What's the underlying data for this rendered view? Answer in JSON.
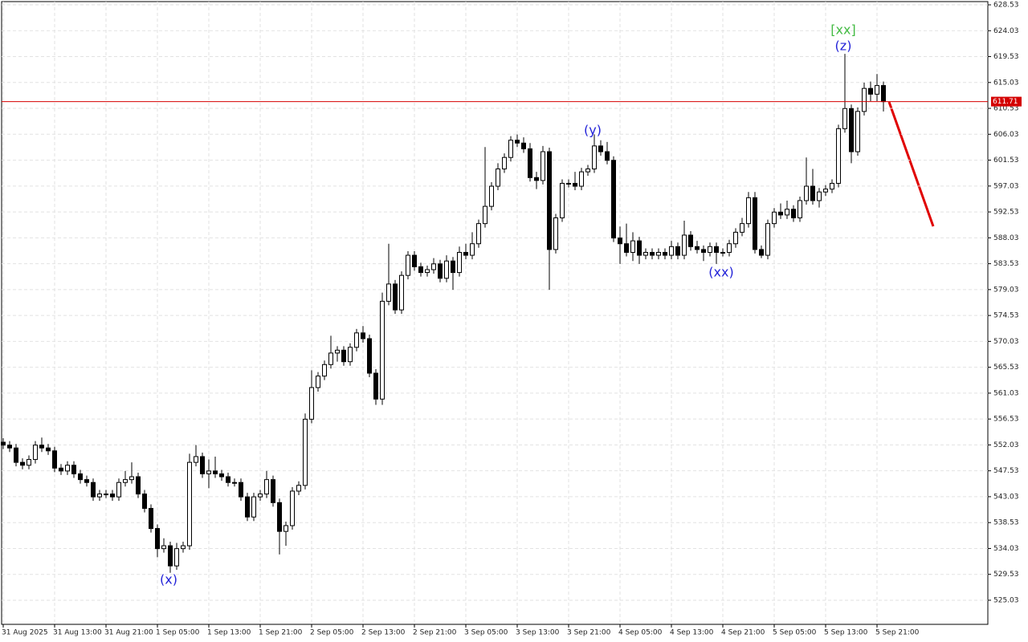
{
  "chart_data": {
    "type": "candlestick",
    "categories": [
      "31 Aug 2025",
      null,
      null,
      null,
      null,
      null,
      null,
      null,
      "31 Aug 13:00",
      null,
      null,
      null,
      null,
      null,
      null,
      null,
      "31 Aug 21:00",
      null,
      null,
      null,
      null,
      null,
      null,
      null,
      "1 Sep 05:00",
      null,
      null,
      null,
      null,
      null,
      null,
      null,
      "1 Sep 13:00",
      null,
      null,
      null,
      null,
      null,
      null,
      null,
      "1 Sep 21:00",
      null,
      null,
      null,
      null,
      null,
      null,
      null,
      "2 Sep 05:00",
      null,
      null,
      null,
      null,
      null,
      null,
      null,
      "2 Sep 13:00",
      null,
      null,
      null,
      null,
      null,
      null,
      null,
      "2 Sep 21:00",
      null,
      null,
      null,
      null,
      null,
      null,
      null,
      "3 Sep 05:00",
      null,
      null,
      null,
      null,
      null,
      null,
      null,
      "3 Sep 13:00",
      null,
      null,
      null,
      null,
      null,
      null,
      null,
      "3 Sep 21:00",
      null,
      null,
      null,
      null,
      null,
      null,
      null,
      "4 Sep 05:00",
      null,
      null,
      null,
      null,
      null,
      null,
      null,
      "4 Sep 13:00",
      null,
      null,
      null,
      null,
      null,
      null,
      null,
      "4 Sep 21:00",
      null,
      null,
      null,
      null,
      null,
      null,
      null,
      "5 Sep 05:00",
      null,
      null,
      null,
      null,
      null,
      null,
      null,
      "5 Sep 13:00",
      null,
      null,
      null,
      null,
      null,
      null,
      null,
      "5 Sep 21:00",
      null
    ],
    "values": [
      [
        552.5,
        553.2,
        551.3,
        552
      ],
      [
        552,
        552.7,
        550.8,
        551.5
      ],
      [
        551.5,
        552.2,
        548.3,
        549
      ],
      [
        549,
        549.7,
        547.8,
        548.5
      ],
      [
        548.5,
        550.2,
        547.8,
        549.5
      ],
      [
        549.5,
        552.7,
        548.8,
        552
      ],
      [
        552,
        553.3,
        550.8,
        551.5
      ],
      [
        551.5,
        552.2,
        550.3,
        551
      ],
      [
        551,
        551.7,
        547.3,
        548
      ],
      [
        548,
        548.7,
        546.8,
        547.5
      ],
      [
        547.5,
        549.2,
        546.8,
        548.5
      ],
      [
        548.5,
        549.2,
        546.3,
        547
      ],
      [
        547,
        547.7,
        545.3,
        546
      ],
      [
        546,
        546.7,
        544.8,
        545.5
      ],
      [
        545.5,
        546.2,
        542.3,
        543
      ],
      [
        543,
        544.2,
        542.3,
        543.5
      ],
      [
        543.5,
        544.2,
        542.8,
        543.5
      ],
      [
        543.5,
        544.2,
        542.3,
        543
      ],
      [
        543,
        546.2,
        542.3,
        545.5
      ],
      [
        545.5,
        547.5,
        544.8,
        546
      ],
      [
        546,
        549,
        545.3,
        546.5
      ],
      [
        546.5,
        547.2,
        542.8,
        543.5
      ],
      [
        543.5,
        544.2,
        540.3,
        541
      ],
      [
        541,
        541.7,
        536.8,
        537.5
      ],
      [
        537.5,
        538.2,
        532.5,
        534
      ],
      [
        534,
        535.8,
        533.3,
        534.5
      ],
      [
        534.5,
        535.2,
        529.8,
        531
      ],
      [
        531,
        535,
        530.3,
        534
      ],
      [
        534,
        535.2,
        533.3,
        534.5
      ],
      [
        534.5,
        550.5,
        533.8,
        549
      ],
      [
        549,
        552,
        548.3,
        550
      ],
      [
        550,
        550.7,
        546.3,
        547
      ],
      [
        547,
        549.5,
        544.5,
        547.5
      ],
      [
        547.5,
        550,
        546.3,
        547
      ],
      [
        547,
        547.7,
        545.8,
        546.5
      ],
      [
        546.5,
        547.2,
        544.8,
        545.5
      ],
      [
        545.5,
        546.2,
        544.8,
        545.5
      ],
      [
        545.5,
        546.2,
        542.3,
        543
      ],
      [
        543,
        543.7,
        538.8,
        539.5
      ],
      [
        539.5,
        543.7,
        538.8,
        543
      ],
      [
        543,
        544.2,
        542.3,
        543.5
      ],
      [
        543.5,
        547.5,
        542.8,
        546
      ],
      [
        546,
        546.7,
        541.3,
        542
      ],
      [
        542,
        542.7,
        533,
        537
      ],
      [
        537,
        538.7,
        534.5,
        538
      ],
      [
        538,
        544.7,
        537.3,
        544
      ],
      [
        544,
        545.7,
        543.3,
        545
      ],
      [
        545,
        557.5,
        544.3,
        556.5
      ],
      [
        556.5,
        565,
        555.8,
        562
      ],
      [
        562,
        564.7,
        561.3,
        564
      ],
      [
        564,
        566.7,
        563.3,
        566
      ],
      [
        566,
        571,
        565.3,
        568
      ],
      [
        568,
        569.2,
        566.5,
        568.5
      ],
      [
        568.5,
        569.2,
        565.8,
        566.5
      ],
      [
        566.5,
        569.7,
        565.8,
        569
      ],
      [
        569,
        572.2,
        568.3,
        571.5
      ],
      [
        571.5,
        572.7,
        569.8,
        570.5
      ],
      [
        570.5,
        571.2,
        563.8,
        564.5
      ],
      [
        564.5,
        565.2,
        559,
        560
      ],
      [
        560,
        578.5,
        559,
        577
      ],
      [
        577,
        587,
        576.3,
        580
      ],
      [
        580,
        580.7,
        574.8,
        575.5
      ],
      [
        575.5,
        582.2,
        574.8,
        581.5
      ],
      [
        581.5,
        585.7,
        580.8,
        585
      ],
      [
        585,
        585.7,
        582.3,
        583
      ],
      [
        583,
        583.7,
        581.3,
        582
      ],
      [
        582,
        583.2,
        581.3,
        582.5
      ],
      [
        582.5,
        584.5,
        581.8,
        583.5
      ],
      [
        583.5,
        584.2,
        580.3,
        581
      ],
      [
        581,
        585,
        580.3,
        584
      ],
      [
        584,
        584.7,
        579,
        582
      ],
      [
        582,
        586.5,
        581.3,
        585.5
      ],
      [
        585.5,
        587,
        584.3,
        585
      ],
      [
        585,
        589,
        584.3,
        587
      ],
      [
        587,
        591.2,
        586.3,
        590.5
      ],
      [
        590.5,
        603.8,
        589.8,
        593.5
      ],
      [
        593.5,
        597.7,
        592.8,
        597
      ],
      [
        597,
        601,
        596.3,
        600
      ],
      [
        600,
        602.7,
        599.3,
        602
      ],
      [
        602,
        605.7,
        601.3,
        605
      ],
      [
        605,
        606,
        603.8,
        604.5
      ],
      [
        604.5,
        605.5,
        602.8,
        603.5
      ],
      [
        603.5,
        604.5,
        597.8,
        598.5
      ],
      [
        598.5,
        599.5,
        596.5,
        598
      ],
      [
        598,
        604,
        597.3,
        603
      ],
      [
        603,
        603.7,
        579,
        586
      ],
      [
        586,
        592.2,
        585.3,
        591.5
      ],
      [
        591.5,
        598.2,
        590.8,
        597.5
      ],
      [
        597.5,
        598.2,
        596.8,
        597.5
      ],
      [
        597.5,
        599.5,
        596.3,
        597
      ],
      [
        597,
        600.2,
        596.3,
        599.5
      ],
      [
        599.5,
        600.7,
        598.8,
        600
      ],
      [
        600,
        606,
        599.3,
        604
      ],
      [
        604,
        605,
        602.3,
        603
      ],
      [
        603,
        604.7,
        600.8,
        601.5
      ],
      [
        601.5,
        602.2,
        587.3,
        588
      ],
      [
        588,
        590,
        583.5,
        587
      ],
      [
        587,
        590.5,
        584.8,
        585.5
      ],
      [
        585.5,
        589,
        584,
        587.5
      ],
      [
        587.5,
        588.2,
        583.5,
        585
      ],
      [
        585,
        586.2,
        584.3,
        585.5
      ],
      [
        585.5,
        586.2,
        584.3,
        585
      ],
      [
        585,
        586.2,
        584.3,
        585.5
      ],
      [
        585.5,
        586.2,
        584.3,
        585
      ],
      [
        585,
        587.5,
        584.3,
        586.5
      ],
      [
        586.5,
        587.2,
        584.3,
        585
      ],
      [
        585,
        591,
        584.3,
        588.5
      ],
      [
        588.5,
        589.2,
        585.8,
        586.5
      ],
      [
        586.5,
        587.5,
        585.3,
        586
      ],
      [
        586,
        586.7,
        584,
        585.5
      ],
      [
        585.5,
        587.2,
        584.8,
        586.5
      ],
      [
        586.5,
        587.2,
        583.5,
        585.5
      ],
      [
        585.5,
        586.2,
        584.8,
        585.5
      ],
      [
        585.5,
        587.7,
        584.8,
        587
      ],
      [
        587,
        589.7,
        586.3,
        589
      ],
      [
        589,
        591.5,
        588.3,
        590.5
      ],
      [
        590.5,
        596,
        589.8,
        595
      ],
      [
        595,
        596,
        585.3,
        586
      ],
      [
        586,
        586.7,
        584.5,
        585
      ],
      [
        585,
        591.2,
        584.3,
        590.5
      ],
      [
        590.5,
        593.2,
        589.8,
        592.5
      ],
      [
        592.5,
        594,
        591.3,
        592
      ],
      [
        592,
        594.5,
        591.3,
        593
      ],
      [
        593,
        593.7,
        590.8,
        591.5
      ],
      [
        591.5,
        595.2,
        590.8,
        594.5
      ],
      [
        594.5,
        602,
        593.8,
        597
      ],
      [
        597,
        600,
        593.8,
        594.5
      ],
      [
        594.5,
        596.7,
        593.3,
        596
      ],
      [
        596,
        597.2,
        595.3,
        596.5
      ],
      [
        596.5,
        598.2,
        595.8,
        597.5
      ],
      [
        597.5,
        607.7,
        596.8,
        607
      ],
      [
        607,
        620,
        606.3,
        610.5
      ],
      [
        610.5,
        611.2,
        601,
        603
      ],
      [
        603,
        610.7,
        602.3,
        610
      ],
      [
        610,
        615,
        609.3,
        614
      ],
      [
        614,
        615.2,
        611.8,
        613
      ],
      [
        613,
        616.5,
        611.8,
        614.5
      ],
      [
        614.5,
        615.2,
        610,
        611.7
      ]
    ],
    "up_color": "#ffffff",
    "down_color": "#000000",
    "outline_color": "#000000",
    "ylim": [
      520.84,
      629.09
    ],
    "yticks": [
      525.03,
      529.53,
      534.03,
      538.53,
      543.03,
      547.53,
      552.03,
      556.53,
      561.03,
      565.53,
      570.03,
      574.53,
      579.03,
      583.53,
      588.03,
      592.53,
      597.03,
      601.53,
      606.03,
      610.53,
      615.03,
      619.53,
      624.03,
      628.53
    ],
    "grid": true,
    "last_price": 611.71,
    "last_price_color": "#d40000",
    "annotations": [
      {
        "text": "(x)",
        "color": "#2323d8"
      },
      {
        "text": "(y)",
        "color": "#2323d8"
      },
      {
        "text": "(xx)",
        "color": "#2323d8"
      },
      {
        "text": "(z)",
        "color": "#2323d8"
      },
      {
        "text": "[xx]",
        "color": "#44bb44"
      }
    ]
  }
}
